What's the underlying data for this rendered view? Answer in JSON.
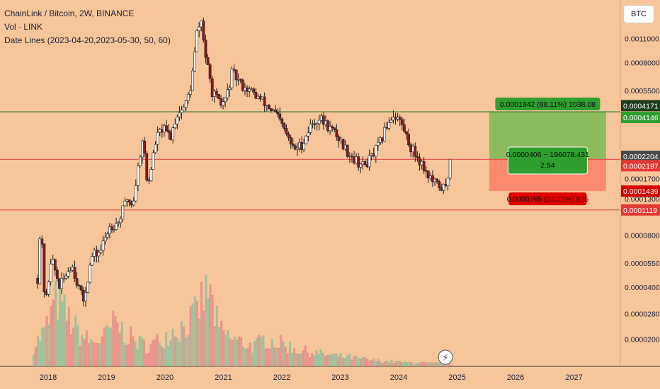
{
  "legend": {
    "title": "ChainLink / Bitcoin, 2W, BINANCE",
    "volume": "Vol · LINK",
    "indicator": "Date Lines (2023-04-20,2023-05-30, 50, 60)"
  },
  "currency_button": "BTC",
  "colors": {
    "background": "#f7c59a",
    "candle_up": "#ffffff",
    "candle_down": "#8b1a1a",
    "wick": "#1f1f1f",
    "volume_up": "#8fbf9a",
    "volume_down": "#e88a8a",
    "hline": "#e84c4c",
    "target_line": "#2e7d32",
    "profit_zone": "#8cbb5e",
    "loss_zone": "#fb8a6e"
  },
  "chart_data": {
    "type": "candlestick",
    "symbol": "ChainLink / Bitcoin",
    "interval": "2W",
    "exchange": "BINANCE",
    "y_scale": "log",
    "ylim": [
      1.7e-05,
      0.0015
    ],
    "x_axis": {
      "ticks": [
        "2018",
        "2019",
        "2020",
        "2021",
        "2022",
        "2023",
        "2024",
        "2025",
        "2026",
        "2027"
      ],
      "range": [
        2017.7,
        2027.7
      ]
    },
    "y_axis": {
      "tick_labels": [
        "0.0011000",
        "0.0008000",
        "0.0005500",
        "0.0002204",
        "0.0001700",
        "0.0001300",
        "0.0000800",
        "0.0000550",
        "0.0000400",
        "0.0000280",
        "0.0000200"
      ]
    },
    "price_path": [
      [
        2017.82,
        4.5e-05
      ],
      [
        2017.87,
        9.5e-05
      ],
      [
        2017.95,
        3e-05
      ],
      [
        2018.05,
        6e-05
      ],
      [
        2018.2,
        4e-05
      ],
      [
        2018.4,
        5.5e-05
      ],
      [
        2018.6,
        3.3e-05
      ],
      [
        2018.75,
        6e-05
      ],
      [
        2018.9,
        6.5e-05
      ],
      [
        2019.05,
        9e-05
      ],
      [
        2019.2,
        9.5e-05
      ],
      [
        2019.35,
        0.00013
      ],
      [
        2019.45,
        0.00012
      ],
      [
        2019.55,
        0.00021
      ],
      [
        2019.62,
        0.0003
      ],
      [
        2019.7,
        0.00015
      ],
      [
        2019.85,
        0.00029
      ],
      [
        2019.95,
        0.00033
      ],
      [
        2020.1,
        0.0003
      ],
      [
        2020.2,
        0.0004
      ],
      [
        2020.35,
        0.00045
      ],
      [
        2020.45,
        0.0006
      ],
      [
        2020.55,
        0.0012
      ],
      [
        2020.62,
        0.0014
      ],
      [
        2020.7,
        0.00085
      ],
      [
        2020.8,
        0.00055
      ],
      [
        2020.95,
        0.00045
      ],
      [
        2021.05,
        0.0005
      ],
      [
        2021.15,
        0.0007
      ],
      [
        2021.3,
        0.0006
      ],
      [
        2021.45,
        0.00055
      ],
      [
        2021.6,
        0.0005
      ],
      [
        2021.75,
        0.00045
      ],
      [
        2021.9,
        0.0004
      ],
      [
        2022.05,
        0.00032
      ],
      [
        2022.2,
        0.00025
      ],
      [
        2022.35,
        0.00027
      ],
      [
        2022.5,
        0.00035
      ],
      [
        2022.65,
        0.00038
      ],
      [
        2022.8,
        0.00034
      ],
      [
        2022.95,
        0.0003
      ],
      [
        2023.1,
        0.00025
      ],
      [
        2023.25,
        0.00022
      ],
      [
        2023.4,
        0.0002
      ],
      [
        2023.55,
        0.00023
      ],
      [
        2023.7,
        0.00028
      ],
      [
        2023.8,
        0.00035
      ],
      [
        2023.9,
        0.0004
      ],
      [
        2024.0,
        0.00038
      ],
      [
        2024.1,
        0.00032
      ],
      [
        2024.2,
        0.00026
      ],
      [
        2024.35,
        0.00022
      ],
      [
        2024.5,
        0.00018
      ],
      [
        2024.6,
        0.00016
      ],
      [
        2024.75,
        0.00015
      ],
      [
        2024.82,
        0.00015
      ],
      [
        2024.88,
        0.00022
      ]
    ],
    "volume": {
      "description_values_relative": [
        0.25,
        0.45,
        0.85,
        0.6,
        0.4,
        0.3,
        0.35,
        0.55,
        0.4,
        0.3,
        0.25,
        0.35,
        0.45,
        0.5,
        0.65,
        1.0,
        0.45,
        0.35,
        0.3,
        0.25,
        0.35,
        0.3,
        0.25,
        0.2,
        0.18,
        0.15,
        0.13,
        0.12,
        0.1,
        0.08,
        0.07,
        0.06,
        0.05,
        0.05,
        0.04,
        0.04,
        0.03
      ]
    },
    "horizontal_lines": [
      {
        "price": 0.0004146,
        "label": "0.0004146",
        "color": "#2e7d32"
      },
      {
        "price": 0.0002197,
        "label": "0.0002197",
        "color": "#e84c4c"
      },
      {
        "price": 0.0001119,
        "label": "0.0001119",
        "color": "#e84c4c"
      }
    ],
    "price_scale_labels": [
      {
        "text": "0.0004171",
        "bg": "#1b3d1e"
      },
      {
        "text": "0.0004146",
        "bg": "#2e9e2e"
      },
      {
        "text": "0.0002204",
        "bg": "#4a4a4a"
      },
      {
        "text": "0.0002197",
        "bg": "#e53935"
      },
      {
        "text": "0.0001439",
        "bg": "#d50000"
      },
      {
        "text": "0.0001119",
        "bg": "#e53935"
      }
    ],
    "long_position": {
      "entry": 0.0002204,
      "target": 0.0004146,
      "stop": 0.0001439,
      "target_label": "0.0001942 (88.11%) 1038.08",
      "center_label_1": "0.0000406 ~ 196078.431",
      "center_label_2": "2.54",
      "stop_label": "0.0000765 (34.71%) 985",
      "x_start": 2025.55,
      "x_end": 2027.55
    },
    "grid": false,
    "event_marker": "⚡"
  }
}
